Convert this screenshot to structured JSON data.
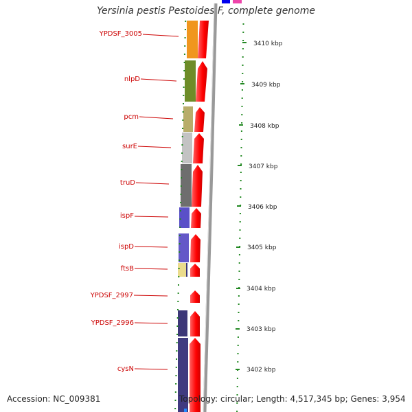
{
  "title": "Yersinia pestis Pestoides F, complete genome",
  "accession": "Accession: NC_009381",
  "topology": "Topology: circular; Length: 4,517,345 bp; Genes: 3,954",
  "ticks": [
    "3410 kbp",
    "3409 kbp",
    "3408 kbp",
    "3407 kbp",
    "3406 kbp",
    "3405 kbp",
    "3404 kbp",
    "3403 kbp",
    "3402 kbp"
  ],
  "genes": [
    {
      "name": "YPDSF_3005",
      "color": "#f0961e"
    },
    {
      "name": "nlpD",
      "color": "#6e8c28"
    },
    {
      "name": "pcm",
      "color": "#b8ad6a"
    },
    {
      "name": "surE",
      "color": "#c3c3c3"
    },
    {
      "name": "truD",
      "color": "#6e6e6e"
    },
    {
      "name": "ispF",
      "color": "#5a50c8"
    },
    {
      "name": "ispD",
      "color": "#6458c8"
    },
    {
      "name": "ftsB",
      "color": "#ebdc8c"
    },
    {
      "name": "YPDSF_2997",
      "color": ""
    },
    {
      "name": "YPDSF_2996",
      "color": "#3c3778"
    },
    {
      "name": "cysN",
      "color": "#403a80"
    }
  ],
  "colors": {
    "cds": "#ff0000",
    "label": "#cc0000",
    "tick": "#228822",
    "backbone": "#888888"
  }
}
